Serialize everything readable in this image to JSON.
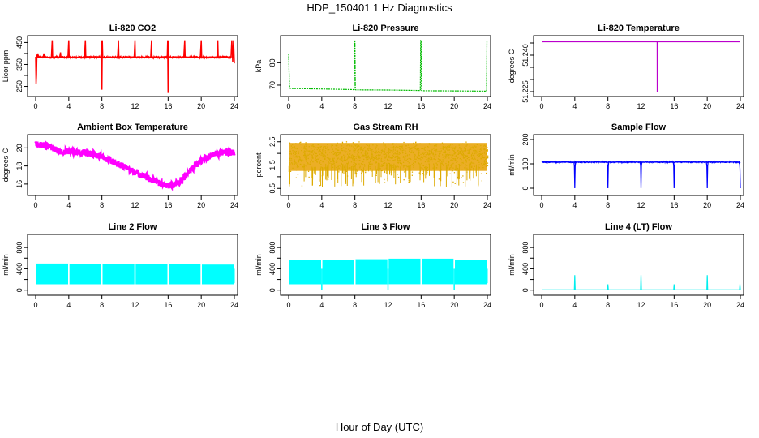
{
  "figure": {
    "title": "HDP_150401  1 Hz Diagnostics",
    "xlabel": "Hour of Day (UTC)"
  },
  "chart_data": [
    {
      "type": "line",
      "title": "Li-820 CO2",
      "ylabel": "Licor ppm",
      "color": "#ff0000",
      "xlim": [
        0,
        24
      ],
      "ylim": [
        215,
        470
      ],
      "xticks": [
        0,
        4,
        8,
        12,
        16,
        20,
        24
      ],
      "yticks": [
        250,
        300,
        350,
        400,
        450
      ],
      "ytick_labels": [
        "250",
        "",
        "350",
        "",
        "450"
      ],
      "series": [
        {
          "x": [
            0,
            0.05,
            0.1,
            0.15,
            0.2,
            0.25,
            0.35,
            0.5,
            0.9,
            1.0,
            1.05,
            1.5,
            1.9,
            2.0,
            2.05,
            2.5,
            2.9,
            3.0,
            3.05,
            3.5,
            3.9,
            4.0,
            4.05,
            4.5,
            5.9,
            6.0,
            6.05,
            6.5,
            7.0,
            7.9,
            7.95,
            8.0,
            8.05,
            8.1,
            8.5,
            9.9,
            10.0,
            10.05,
            10.5,
            11.9,
            12.0,
            12.05,
            12.5,
            13.9,
            14.0,
            14.05,
            14.5,
            15.9,
            15.95,
            16.0,
            16.05,
            16.1,
            16.5,
            17.9,
            18.0,
            18.05,
            18.5,
            19.9,
            20.0,
            20.05,
            20.5,
            21.9,
            22.0,
            22.05,
            22.5,
            23.6,
            23.7,
            23.8,
            23.9,
            24.0
          ],
          "values": [
            385,
            260,
            300,
            395,
            380,
            400,
            383,
            382,
            383,
            400,
            383,
            382,
            383,
            460,
            383,
            382,
            383,
            405,
            383,
            382,
            383,
            460,
            383,
            382,
            383,
            460,
            383,
            382,
            383,
            383,
            460,
            235,
            460,
            383,
            382,
            383,
            460,
            383,
            382,
            383,
            460,
            383,
            382,
            383,
            460,
            383,
            382,
            383,
            460,
            220,
            460,
            383,
            382,
            383,
            460,
            383,
            382,
            383,
            460,
            383,
            382,
            383,
            460,
            383,
            382,
            383,
            460,
            360,
            460,
            355
          ]
        }
      ]
    },
    {
      "type": "line",
      "title": "Li-820 Pressure",
      "ylabel": "kPa",
      "color": "#00bb00",
      "xlim": [
        0,
        24
      ],
      "ylim": [
        66,
        91
      ],
      "xticks": [
        0,
        4,
        8,
        12,
        16,
        20,
        24
      ],
      "yticks": [
        70,
        80
      ],
      "ytick_labels": [
        "70",
        "80"
      ],
      "series": [
        {
          "x": [
            0,
            0.05,
            0.1,
            0.15,
            0.3,
            4.0,
            7.9,
            7.95,
            8.0,
            8.05,
            8.1,
            12.0,
            15.9,
            15.95,
            16.0,
            16.05,
            16.1,
            20.0,
            23.9,
            23.95,
            24.0
          ],
          "values": [
            84,
            76,
            70,
            68.6,
            68.5,
            68.3,
            68.0,
            90,
            90,
            68.0,
            67.9,
            67.8,
            67.6,
            90,
            90,
            67.6,
            67.5,
            67.4,
            67.3,
            90,
            90
          ]
        }
      ]
    },
    {
      "type": "line",
      "title": "Li-820 Temperature",
      "ylabel": "degrees C",
      "color": "#bb00cc",
      "xlim": [
        0,
        24
      ],
      "ylim": [
        51.224,
        51.247
      ],
      "xticks": [
        0,
        4,
        8,
        12,
        16,
        20,
        24
      ],
      "yticks": [
        51.225,
        51.23,
        51.235,
        51.24,
        51.245
      ],
      "ytick_labels": [
        "51.225",
        "",
        "",
        "51.240",
        ""
      ],
      "series": [
        {
          "x": [
            0,
            13.95,
            13.96,
            13.97,
            13.98,
            24
          ],
          "values": [
            51.2455,
            51.2455,
            51.225,
            51.2455,
            51.2455,
            51.2455
          ]
        }
      ]
    },
    {
      "type": "line",
      "title": "Ambient Box Temperature",
      "ylabel": "degrees C",
      "color": "#ff00ff",
      "xlim": [
        0,
        24
      ],
      "ylim": [
        15,
        21.2
      ],
      "xticks": [
        0,
        4,
        8,
        12,
        16,
        20,
        24
      ],
      "yticks": [
        16,
        18,
        20
      ],
      "ytick_labels": [
        "16",
        "18",
        "20"
      ],
      "series": [
        {
          "x": [
            0,
            1,
            2,
            3,
            4,
            5,
            6,
            7,
            8,
            9,
            10,
            11,
            12,
            13,
            14,
            15,
            16,
            17,
            18,
            19,
            20,
            21,
            22,
            23,
            24
          ],
          "values": [
            20.4,
            20.3,
            20.0,
            19.6,
            19.6,
            19.5,
            19.5,
            19.3,
            19.0,
            18.6,
            18.2,
            17.8,
            17.3,
            16.9,
            16.5,
            16.1,
            15.8,
            16.0,
            16.8,
            17.8,
            18.6,
            19.1,
            19.4,
            19.5,
            19.5
          ]
        }
      ]
    },
    {
      "type": "line",
      "title": "Gas Stream RH",
      "ylabel": "percent",
      "color": "#ddaa00",
      "xlim": [
        0,
        24
      ],
      "ylim": [
        0.3,
        2.7
      ],
      "xticks": [
        0,
        4,
        8,
        12,
        16,
        20,
        24
      ],
      "yticks": [
        0.5,
        1,
        1.5,
        2,
        2.5
      ],
      "ytick_labels": [
        "0.5",
        "",
        "1.5",
        "",
        "2.5"
      ],
      "series": [
        {
          "x": [
            0,
            24
          ],
          "values": [
            0.9,
            2.5
          ]
        }
      ]
    },
    {
      "type": "line",
      "title": "Sample Flow",
      "ylabel": "ml/min",
      "color": "#0000ff",
      "xlim": [
        0,
        24
      ],
      "ylim": [
        -20,
        210
      ],
      "xticks": [
        0,
        4,
        8,
        12,
        16,
        20,
        24
      ],
      "yticks": [
        0,
        100,
        200
      ],
      "ytick_labels": [
        "0",
        "100",
        "200"
      ],
      "series": [
        {
          "x": [
            0,
            3.9,
            3.95,
            4.0,
            4.05,
            4.1,
            7.9,
            7.95,
            8.0,
            8.05,
            8.1,
            11.9,
            11.95,
            12.0,
            12.05,
            12.1,
            15.9,
            15.95,
            16.0,
            16.05,
            16.1,
            19.9,
            19.95,
            20.0,
            20.05,
            20.1,
            23.9,
            23.95,
            24.0
          ],
          "values": [
            108,
            107,
            90,
            0,
            90,
            107,
            107,
            90,
            0,
            90,
            107,
            107,
            90,
            0,
            90,
            107,
            107,
            90,
            0,
            90,
            107,
            107,
            90,
            0,
            90,
            107,
            107,
            80,
            0
          ]
        }
      ]
    },
    {
      "type": "area",
      "title": "Line 2 Flow",
      "ylabel": "ml/min",
      "color": "#00ffff",
      "xlim": [
        0,
        24
      ],
      "ylim": [
        -50,
        1000
      ],
      "xticks": [
        0,
        4,
        8,
        12,
        16,
        20,
        24
      ],
      "yticks": [
        0,
        200,
        400,
        600,
        800
      ],
      "ytick_labels": [
        "0",
        "",
        "400",
        "",
        "800"
      ],
      "series": [
        {
          "x": [
            0,
            4,
            8,
            12,
            16,
            20,
            24
          ],
          "values": [
            500,
            490,
            490,
            490,
            490,
            480,
            480
          ]
        }
      ]
    },
    {
      "type": "area",
      "title": "Line 3 Flow",
      "ylabel": "ml/min",
      "color": "#00ffff",
      "xlim": [
        0,
        24
      ],
      "ylim": [
        -50,
        1000
      ],
      "xticks": [
        0,
        4,
        8,
        12,
        16,
        20,
        24
      ],
      "yticks": [
        0,
        200,
        400,
        600,
        800
      ],
      "ytick_labels": [
        "0",
        "",
        "400",
        "",
        "800"
      ],
      "series": [
        {
          "x": [
            0,
            4,
            8,
            12,
            16,
            20,
            24
          ],
          "values": [
            560,
            560,
            570,
            580,
            590,
            570,
            560
          ]
        }
      ]
    },
    {
      "type": "line",
      "title": "Line 4 (LT) Flow",
      "ylabel": "ml/min",
      "color": "#00eeee",
      "xlim": [
        0,
        24
      ],
      "ylim": [
        -50,
        1000
      ],
      "xticks": [
        0,
        4,
        8,
        12,
        16,
        20,
        24
      ],
      "yticks": [
        0,
        200,
        400,
        600,
        800
      ],
      "ytick_labels": [
        "0",
        "",
        "400",
        "",
        "800"
      ],
      "series": [
        {
          "x": [
            0,
            3.95,
            4.0,
            4.05,
            7.95,
            8.0,
            8.05,
            11.95,
            12.0,
            12.05,
            15.95,
            16.0,
            16.05,
            19.95,
            20.0,
            20.05,
            23.9,
            23.95,
            24.0
          ],
          "values": [
            5,
            5,
            280,
            5,
            5,
            110,
            5,
            5,
            280,
            5,
            5,
            110,
            5,
            5,
            280,
            5,
            5,
            110,
            5
          ]
        }
      ]
    }
  ]
}
